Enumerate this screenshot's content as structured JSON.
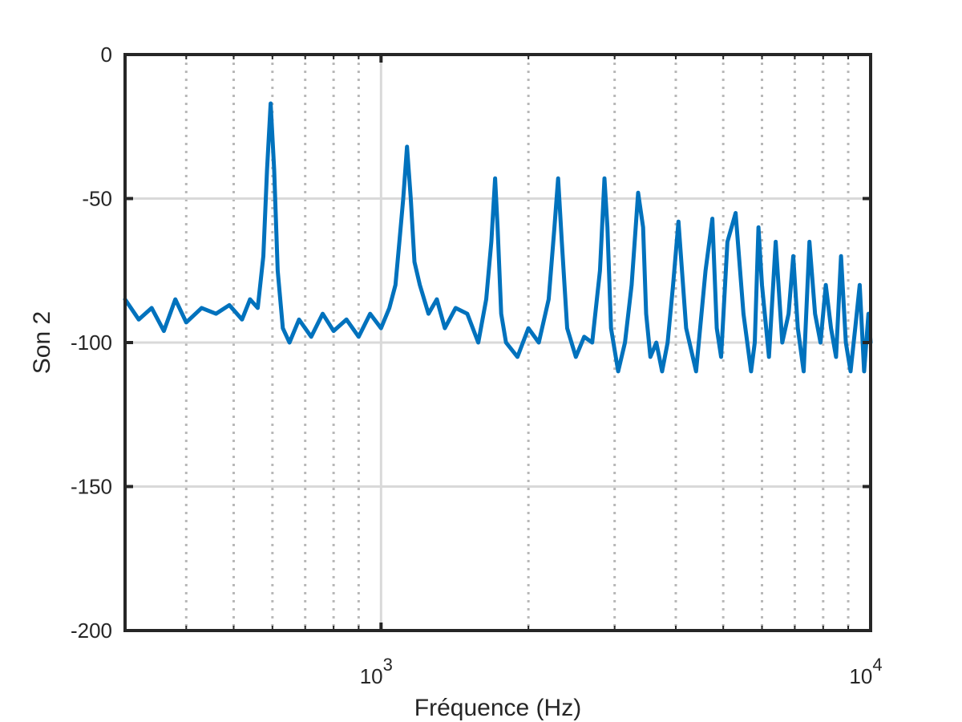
{
  "chart_data": {
    "type": "line",
    "title": "",
    "xlabel": "Fréquence (Hz)",
    "ylabel": "Son 2",
    "x_scale": "log",
    "xlim": [
      300,
      10000
    ],
    "ylim": [
      -200,
      0
    ],
    "x_ticks": [
      {
        "value": 1000,
        "base": "10",
        "exp": "3"
      },
      {
        "value": 10000,
        "base": "10",
        "exp": "4"
      }
    ],
    "y_ticks": [
      {
        "value": 0,
        "label": "0"
      },
      {
        "value": -50,
        "label": "-50"
      },
      {
        "value": -100,
        "label": "-100"
      },
      {
        "value": -150,
        "label": "-150"
      },
      {
        "value": -200,
        "label": "-200"
      }
    ],
    "grid": {
      "major": true,
      "minor": true
    },
    "line_color": "#0072BD",
    "series": [
      {
        "x": [
          300,
          320,
          340,
          360,
          380,
          400,
          430,
          460,
          490,
          520,
          540,
          560,
          575,
          585,
          595,
          605,
          615,
          630,
          650,
          680,
          720,
          760,
          800,
          850,
          900,
          950,
          1000,
          1040,
          1070,
          1090,
          1110,
          1130,
          1150,
          1170,
          1200,
          1250,
          1300,
          1350,
          1420,
          1500,
          1580,
          1640,
          1680,
          1710,
          1730,
          1760,
          1800,
          1900,
          2000,
          2100,
          2200,
          2260,
          2300,
          2340,
          2400,
          2500,
          2600,
          2700,
          2800,
          2860,
          2900,
          2950,
          3050,
          3150,
          3250,
          3350,
          3430,
          3480,
          3550,
          3650,
          3750,
          3850,
          3950,
          4050,
          4200,
          4400,
          4600,
          4750,
          4850,
          4950,
          5100,
          5300,
          5500,
          5700,
          5800,
          5900,
          6000,
          6200,
          6400,
          6600,
          6800,
          6950,
          7100,
          7300,
          7500,
          7700,
          7900,
          8100,
          8300,
          8500,
          8700,
          8900,
          9100,
          9300,
          9500,
          9700,
          9900,
          10000
        ],
        "y": [
          -85,
          -92,
          -88,
          -96,
          -85,
          -93,
          -88,
          -90,
          -87,
          -92,
          -85,
          -88,
          -70,
          -40,
          -17,
          -40,
          -75,
          -95,
          -100,
          -92,
          -98,
          -90,
          -96,
          -92,
          -98,
          -90,
          -95,
          -88,
          -80,
          -65,
          -50,
          -32,
          -50,
          -72,
          -80,
          -90,
          -85,
          -95,
          -88,
          -90,
          -100,
          -85,
          -65,
          -43,
          -60,
          -90,
          -100,
          -105,
          -95,
          -100,
          -85,
          -60,
          -43,
          -65,
          -95,
          -105,
          -98,
          -100,
          -75,
          -43,
          -60,
          -95,
          -110,
          -100,
          -80,
          -48,
          -60,
          -90,
          -105,
          -100,
          -110,
          -100,
          -80,
          -58,
          -95,
          -110,
          -75,
          -57,
          -95,
          -105,
          -65,
          -55,
          -90,
          -110,
          -100,
          -60,
          -80,
          -105,
          -65,
          -100,
          -90,
          -70,
          -95,
          -110,
          -65,
          -90,
          -100,
          -80,
          -95,
          -105,
          -70,
          -100,
          -110,
          -95,
          -80,
          -110,
          -90,
          -100
        ]
      }
    ]
  }
}
